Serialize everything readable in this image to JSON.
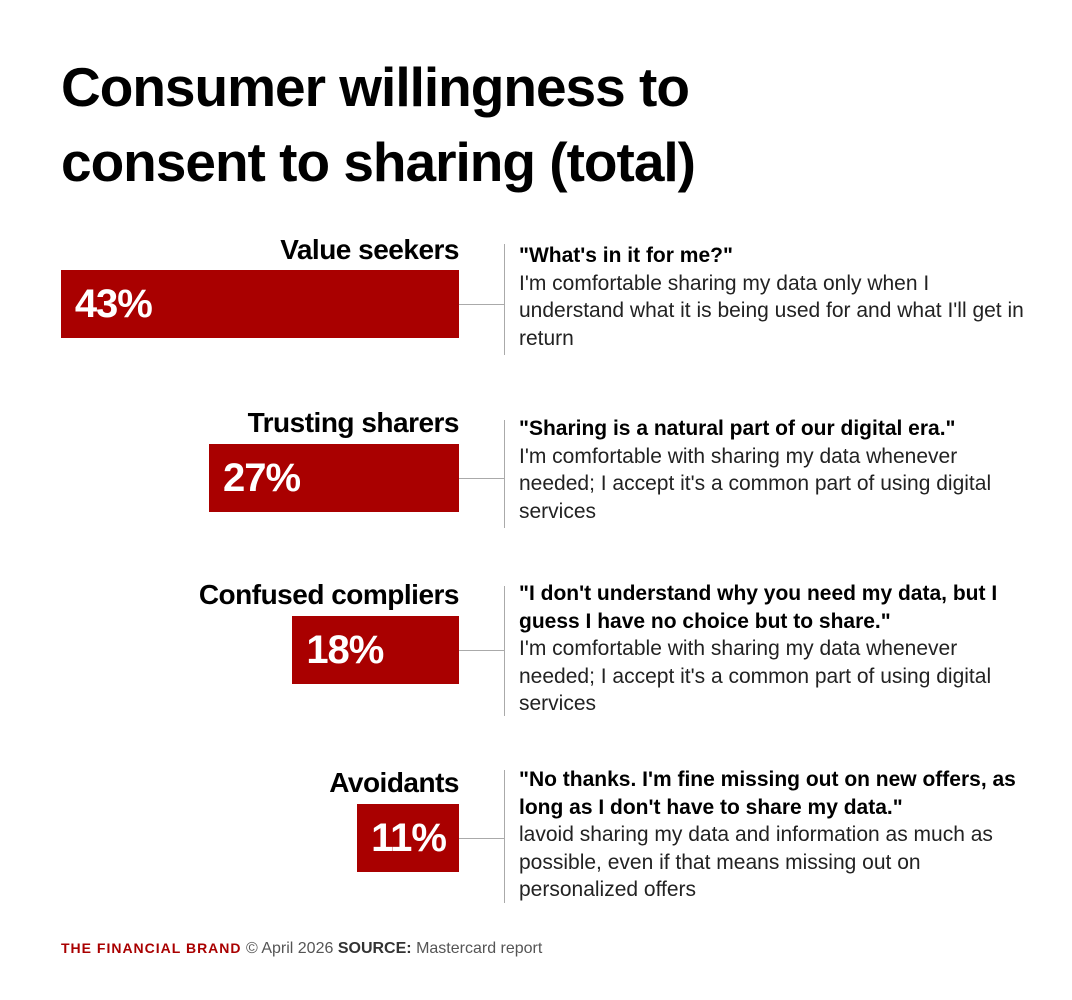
{
  "chart_data": {
    "type": "bar",
    "title": "Consumer willingness to consent to sharing (total)",
    "categories": [
      "Value seekers",
      "Trusting sharers",
      "Confused compliers",
      "Avoidants"
    ],
    "values": [
      43,
      27,
      18,
      11
    ],
    "value_labels": [
      "43%",
      "27%",
      "18%",
      "11%"
    ],
    "color": "#a90000",
    "quotes": [
      "\"What's in it for me?\"",
      "\"Sharing is a natural part of our digital era.\"",
      "\"I don't understand why you need my data, but I guess I have no choice but to share.\"",
      "\"No thanks. I'm fine missing out on new offers, as long as I don't have to share my data.\""
    ],
    "descriptions": [
      "I'm comfortable sharing my data only when I understand what it is being used for and what I'll get in return",
      "I'm comfortable with sharing my data whenever needed; I accept it's a common part of using digital services",
      "I'm comfortable with sharing my data whenever needed; I accept it's a common part of using digital services",
      "lavoid sharing my data and information as much as possible, even if that means missing out on personalized offers"
    ]
  },
  "footer": {
    "brand": "THE FINANCIAL BRAND",
    "date": "© April 2026",
    "source_label": "SOURCE:",
    "source": "Mastercard report"
  }
}
